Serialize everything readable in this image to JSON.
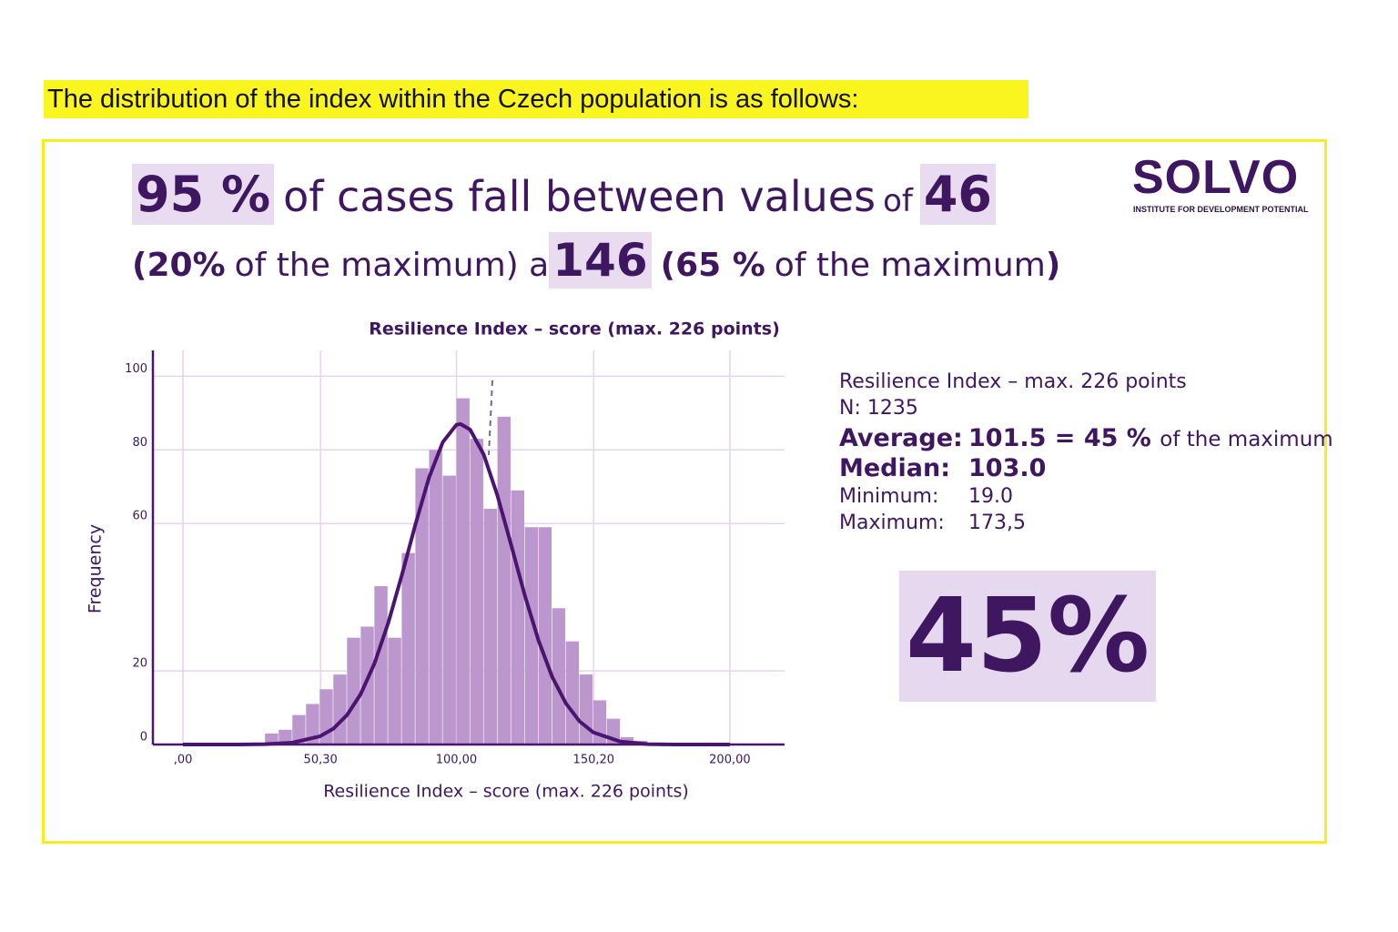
{
  "heading": "The distribution of the index within the Czech population is as follows:",
  "headline": {
    "line1": {
      "pct": "95 %",
      "text": "of cases fall between values",
      "of": "of",
      "low": "46"
    },
    "line2": {
      "low_share": "(20%",
      "low_rest": "of the maximum) a",
      "high": "146",
      "high_share": "(65 %",
      "high_rest": "of the maximum",
      "close": ")"
    }
  },
  "logo": {
    "name": "SOLVO",
    "subtitle": "INSTITUTE FOR DEVELOPMENT POTENTIAL"
  },
  "chart_data": {
    "type": "histogram",
    "title": "Resilience Index – score (max. 226 points)",
    "x_label": "Resilience Index – score (max. 226 points)",
    "y_label": "Frequency",
    "bins": [
      30,
      35,
      40,
      45,
      50,
      55,
      60,
      65,
      70,
      75,
      80,
      85,
      90,
      95,
      100,
      105,
      110,
      115,
      120,
      125,
      130,
      135,
      140,
      145,
      150,
      155,
      160,
      165,
      170
    ],
    "values": [
      3,
      4,
      8,
      11,
      15,
      19,
      29,
      32,
      43,
      29,
      52,
      75,
      80,
      73,
      94,
      83,
      64,
      89,
      69,
      59,
      59,
      37,
      28,
      19,
      12,
      7,
      2,
      1
    ],
    "color": "#bb97ce",
    "curve": {
      "color": "#4a1470",
      "x": [
        0,
        10,
        20,
        30,
        40,
        50,
        55,
        60,
        65,
        70,
        75,
        80,
        85,
        90,
        95,
        100,
        101.5,
        105,
        110,
        115,
        120,
        125,
        130,
        135,
        140,
        145,
        150,
        160,
        170,
        180,
        190,
        200
      ],
      "values": [
        0,
        0,
        0,
        0.1,
        0.5,
        2.2,
        4.3,
        8,
        13.7,
        22,
        32.9,
        45.9,
        59.7,
        72.5,
        82.1,
        86.8,
        87,
        85.5,
        78.7,
        67.6,
        54.2,
        40.5,
        28.3,
        18.4,
        11.2,
        6.3,
        3.3,
        0.8,
        0.1,
        0,
        0,
        0
      ]
    },
    "xlim": [
      -11,
      220
    ],
    "ylim": [
      0,
      107
    ],
    "xticks": [
      {
        "value": 0,
        "label": ",00"
      },
      {
        "value": 50.3,
        "label": "50,30"
      },
      {
        "value": 100,
        "label": "100,00"
      },
      {
        "value": 150.2,
        "label": "150,20"
      },
      {
        "value": 200,
        "label": "200,00"
      }
    ],
    "yticks": [
      0,
      20,
      60,
      80,
      100
    ],
    "grid": true
  },
  "stats": {
    "title": "Resilience Index – max. 226 points",
    "n": "N: 1235",
    "average_label": "Average:",
    "average_value": "101.5 = 45 %",
    "average_rest": "of the maximum",
    "median_label": "Median:",
    "median_value": "103.0",
    "minimum_label": "Minimum:",
    "minimum_value": "19.0",
    "maximum_label": "Maximum:",
    "maximum_value": "173,5"
  },
  "big_number": "45%"
}
